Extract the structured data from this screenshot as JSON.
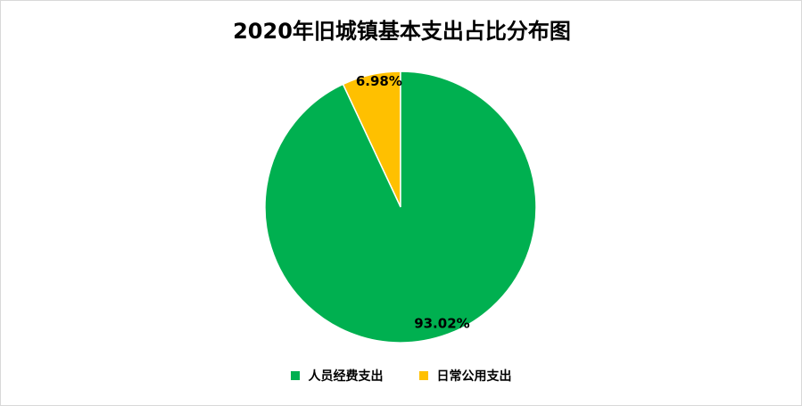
{
  "chart_data": {
    "type": "pie",
    "title": "2020年旧城镇基本支出占比分布图",
    "categories": [
      "人员经费支出",
      "日常公用支出"
    ],
    "values": [
      93.02,
      6.98
    ],
    "labels": [
      "93.02%",
      "6.98%"
    ],
    "colors": [
      "#00b050",
      "#ffc000"
    ],
    "legend_position": "bottom"
  }
}
